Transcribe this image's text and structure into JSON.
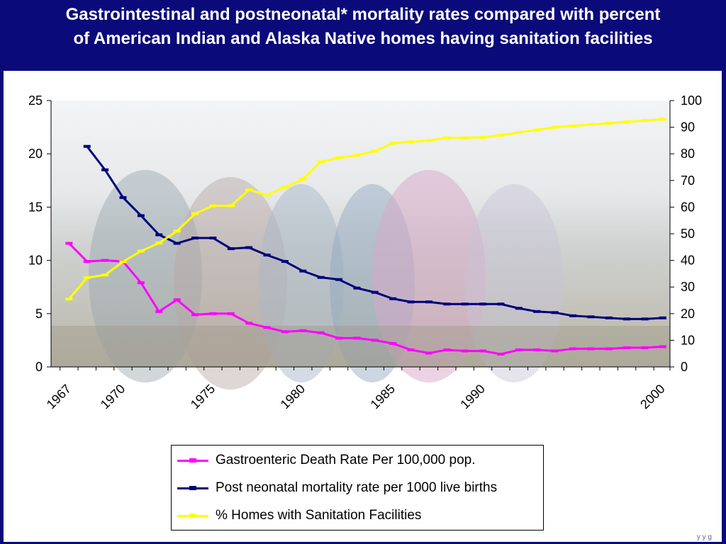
{
  "slide": {
    "title_line1": "Gastrointestinal and postneonatal* mortality rates compared with percent",
    "title_line2": "of American Indian and Alaska Native homes having sanitation facilities"
  },
  "colors": {
    "background": "#0a0a7a",
    "gastro": "#ff00ff",
    "postneonatal": "#00007a",
    "sanitation": "#ffff00"
  },
  "chart_data": {
    "type": "line",
    "x": [
      1967,
      1968,
      1969,
      1970,
      1971,
      1972,
      1973,
      1974,
      1975,
      1976,
      1977,
      1978,
      1979,
      1980,
      1981,
      1982,
      1983,
      1984,
      1985,
      1986,
      1987,
      1988,
      1989,
      1990,
      1991,
      1992,
      1993,
      1994,
      1995,
      1996,
      1997,
      1998,
      1999,
      2000
    ],
    "x_tick_labels": [
      {
        "value": 1967,
        "label": "1967"
      },
      {
        "value": 1970,
        "label": "1970"
      },
      {
        "value": 1975,
        "label": "1975"
      },
      {
        "value": 1980,
        "label": "1980"
      },
      {
        "value": 1985,
        "label": "1985"
      },
      {
        "value": 1990,
        "label": "1990"
      },
      {
        "value": 2000,
        "label": "2000"
      }
    ],
    "ylim_left": [
      0,
      25
    ],
    "yticks_left": [
      "0",
      "5",
      "10",
      "15",
      "20",
      "25"
    ],
    "ylim_right": [
      0,
      100
    ],
    "yticks_right": [
      "0",
      "10",
      "20",
      "30",
      "40",
      "50",
      "60",
      "70",
      "80",
      "90",
      "100"
    ],
    "series": [
      {
        "name": "Gastroenteric Death Rate Per 100,000 pop.",
        "axis": "left",
        "color": "#ff00ff",
        "x": [
          1967,
          1968,
          1969,
          1970,
          1971,
          1972,
          1973,
          1974,
          1975,
          1976,
          1977,
          1978,
          1979,
          1980,
          1981,
          1982,
          1983,
          1984,
          1985,
          1986,
          1987,
          1988,
          1989,
          1990,
          1991,
          1992,
          1993,
          1994,
          1995,
          1996,
          1997,
          1998,
          1999,
          2000
        ],
        "values": [
          11.6,
          9.9,
          10.0,
          9.9,
          7.9,
          5.2,
          6.3,
          4.9,
          5.0,
          5.0,
          4.1,
          3.7,
          3.3,
          3.4,
          3.2,
          2.7,
          2.7,
          2.5,
          2.2,
          1.6,
          1.3,
          1.6,
          1.5,
          1.5,
          1.2,
          1.6,
          1.6,
          1.5,
          1.7,
          1.7,
          1.7,
          1.8,
          1.8,
          1.9
        ]
      },
      {
        "name": "Post neonatal mortality rate per 1000 live births",
        "axis": "left",
        "color": "#00007a",
        "x": [
          1968,
          1969,
          1970,
          1971,
          1972,
          1973,
          1974,
          1975,
          1976,
          1977,
          1978,
          1979,
          1980,
          1981,
          1982,
          1983,
          1984,
          1985,
          1986,
          1987,
          1988,
          1989,
          1990,
          1991,
          1992,
          1993,
          1994,
          1995,
          1996,
          1997,
          1998,
          1999,
          2000
        ],
        "values": [
          20.7,
          18.5,
          15.9,
          14.2,
          12.4,
          11.6,
          12.1,
          12.1,
          11.1,
          11.2,
          10.5,
          9.9,
          9.0,
          8.4,
          8.2,
          7.4,
          7.0,
          6.4,
          6.1,
          6.1,
          5.9,
          5.9,
          5.9,
          5.9,
          5.5,
          5.2,
          5.1,
          4.8,
          4.7,
          4.6,
          4.5,
          4.5,
          4.6
        ]
      },
      {
        "name": "% Homes with Sanitation Facilities",
        "axis": "right",
        "color": "#ffff00",
        "x": [
          1967,
          1968,
          1969,
          1970,
          1971,
          1972,
          1973,
          1974,
          1975,
          1976,
          1977,
          1978,
          1979,
          1980,
          1981,
          1982,
          1983,
          1984,
          1985,
          1986,
          1987,
          1988,
          1989,
          1990,
          1991,
          1992,
          1993,
          1994,
          1995,
          1996,
          1997,
          1998,
          1999,
          2000
        ],
        "values": [
          25.5,
          33.5,
          34.5,
          39.5,
          43.5,
          46.5,
          51,
          57.5,
          60.5,
          60.5,
          66.5,
          64.5,
          67.5,
          70.5,
          77,
          78.5,
          79.5,
          81,
          84,
          84.5,
          85,
          86,
          86,
          86.2,
          87,
          88,
          89,
          90,
          90.5,
          91,
          91.5,
          92,
          92.5,
          93
        ]
      }
    ],
    "legend_position": "bottom-center"
  },
  "footer": "y      y      g"
}
